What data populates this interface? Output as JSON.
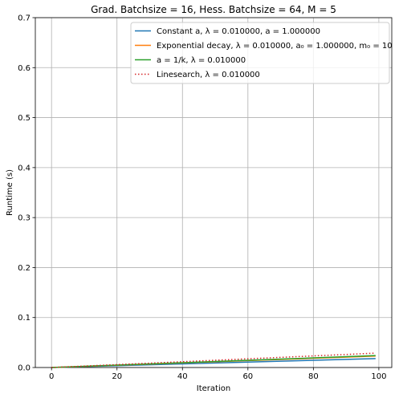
{
  "chart_data": {
    "type": "line",
    "title": "Grad. Batchsize = 16, Hess. Batchsize = 64, M = 5",
    "xlabel": "Iteration",
    "ylabel": "Runtime (s)",
    "xlim": [
      -4.95,
      103.95
    ],
    "ylim": [
      0,
      0.7
    ],
    "x_ticks": [
      0,
      20,
      40,
      60,
      80,
      100
    ],
    "y_ticks": [
      0.0,
      0.1,
      0.2,
      0.3,
      0.4,
      0.5,
      0.6,
      0.7
    ],
    "x_tick_labels": [
      "0",
      "20",
      "40",
      "60",
      "80",
      "100"
    ],
    "y_tick_labels": [
      "0.0",
      "0.1",
      "0.2",
      "0.3",
      "0.4",
      "0.5",
      "0.6",
      "0.7"
    ],
    "grid": true,
    "legend_position": "top-right",
    "x": [
      0,
      10,
      20,
      30,
      40,
      50,
      60,
      70,
      80,
      90,
      99
    ],
    "series": [
      {
        "name": "Constant a, λ = 0.010000, a = 1.000000",
        "color": "#1f77b4",
        "dash": "solid",
        "values": [
          0.0,
          0.0018,
          0.0036,
          0.0054,
          0.0072,
          0.009,
          0.0108,
          0.0126,
          0.0144,
          0.0162,
          0.0178
        ]
      },
      {
        "name": "Exponential decay, λ = 0.010000, a₀ = 1.000000, m₀ = 10",
        "color": "#ff7f0e",
        "dash": "solid",
        "values": [
          0.0,
          0.0023,
          0.0046,
          0.0069,
          0.0092,
          0.0115,
          0.0138,
          0.0161,
          0.0184,
          0.0207,
          0.0228
        ]
      },
      {
        "name": "a = 1/k, λ = 0.010000",
        "color": "#2ca02c",
        "dash": "solid",
        "values": [
          0.0,
          0.0024,
          0.0048,
          0.0072,
          0.0096,
          0.012,
          0.0144,
          0.0168,
          0.0192,
          0.0216,
          0.0238
        ]
      },
      {
        "name": "Linesearch, λ = 0.010000",
        "color": "#d62728",
        "dash": "dotted",
        "values": [
          0.0,
          0.0029,
          0.0058,
          0.0087,
          0.0116,
          0.0145,
          0.0174,
          0.0203,
          0.0232,
          0.0261,
          0.0288
        ]
      }
    ]
  }
}
